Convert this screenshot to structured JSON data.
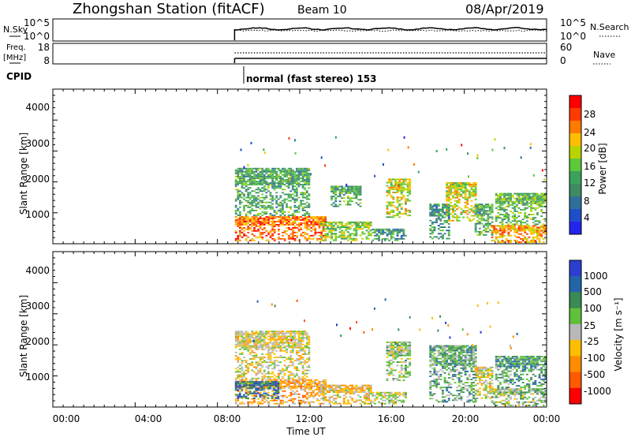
{
  "header": {
    "station": "Zhongshan Station (fitACF)",
    "beam": "Beam 10",
    "date": "08/Apr/2019"
  },
  "strips": {
    "nsky_label": "N.Sky",
    "nsky_ticks": [
      "10^5",
      "10^0"
    ],
    "nsearch_label": "N.Search",
    "nsearch_ticks": [
      "10^5",
      "10^0"
    ],
    "freq_label_1": "Freq.",
    "freq_label_2": "[MHz]",
    "freq_ticks": [
      "18",
      "8"
    ],
    "nave_label": "Nave",
    "nave_ticks": [
      "60",
      "0"
    ],
    "cpid_label": "CPID",
    "cpid_text": "normal (fast stereo) 153"
  },
  "axes": {
    "x_ticks": [
      "00:00",
      "04:00",
      "08:00",
      "12:00",
      "16:00",
      "20:00",
      "00:00"
    ],
    "x_label": "Time UT",
    "y_label": "Slant Range [km]",
    "y_ticks": [
      "4000",
      "3000",
      "2000",
      "1000"
    ]
  },
  "colorbars": {
    "power": {
      "label": "Power [dB]",
      "ticks": [
        "28",
        "24",
        "20",
        "16",
        "12",
        "8",
        "4"
      ],
      "colors": [
        "#ff0000",
        "#ff3a00",
        "#ff7a00",
        "#ffbf00",
        "#b8d400",
        "#5cc83a",
        "#3aa25a",
        "#3f8a62",
        "#2f6f9a",
        "#1f4fc8",
        "#2424f0"
      ]
    },
    "velocity": {
      "label": "Velocity [m s⁻¹]",
      "ticks": [
        "1000",
        "500",
        "100",
        "25",
        "-25",
        "-100",
        "-500",
        "-1000"
      ],
      "colors": [
        "#2a3fd0",
        "#2266a8",
        "#3a8a56",
        "#5fc03a",
        "#b8b8b8",
        "#ffbf00",
        "#ff8c00",
        "#ff5a00",
        "#ff0000"
      ]
    }
  },
  "chart_data": [
    {
      "type": "heatmap",
      "title": "Zhongshan Station (fitACF)  Beam 10  08/Apr/2019",
      "xlabel": "Time UT",
      "ylabel": "Slant Range [km]",
      "x_range": [
        "00:00",
        "24:00"
      ],
      "ylim": [
        180,
        4500
      ],
      "colorbar_label": "Power [dB]",
      "colorbar_range": [
        0,
        30
      ],
      "data_start": "08:50",
      "blobs": [
        {
          "t0": 8.85,
          "t1": 13.3,
          "r0": 250,
          "r1": 950,
          "value": 24
        },
        {
          "t0": 8.85,
          "t1": 12.5,
          "r0": 950,
          "r1": 2300,
          "value": 12
        },
        {
          "t0": 13.0,
          "t1": 15.5,
          "r0": 250,
          "r1": 800,
          "value": 16
        },
        {
          "t0": 13.5,
          "t1": 15.0,
          "r0": 1200,
          "r1": 1800,
          "value": 12
        },
        {
          "t0": 15.5,
          "t1": 17.2,
          "r0": 250,
          "r1": 600,
          "value": 10
        },
        {
          "t0": 16.2,
          "t1": 17.4,
          "r0": 900,
          "r1": 2000,
          "value": 18
        },
        {
          "t0": 18.3,
          "t1": 19.3,
          "r0": 300,
          "r1": 1300,
          "value": 10
        },
        {
          "t0": 19.1,
          "t1": 20.6,
          "r0": 800,
          "r1": 1900,
          "value": 18
        },
        {
          "t0": 20.5,
          "t1": 21.4,
          "r0": 400,
          "r1": 1300,
          "value": 12
        },
        {
          "t0": 21.3,
          "t1": 24.0,
          "r0": 200,
          "r1": 700,
          "value": 22
        },
        {
          "t0": 21.5,
          "t1": 24.0,
          "r0": 700,
          "r1": 1600,
          "value": 14
        }
      ]
    },
    {
      "type": "heatmap",
      "xlabel": "Time UT",
      "ylabel": "Slant Range [km]",
      "x_range": [
        "00:00",
        "24:00"
      ],
      "ylim": [
        180,
        4500
      ],
      "colorbar_label": "Velocity [m s⁻¹]",
      "colorbar_range": [
        -1000,
        1000
      ],
      "data_start": "08:50",
      "blobs": [
        {
          "t0": 8.85,
          "t1": 13.3,
          "r0": 250,
          "r1": 950,
          "value": -300
        },
        {
          "t0": 8.85,
          "t1": 11.0,
          "r0": 400,
          "r1": 900,
          "value": 600
        },
        {
          "t0": 8.85,
          "t1": 12.5,
          "r0": 950,
          "r1": 2300,
          "value": -80
        },
        {
          "t0": 13.0,
          "t1": 15.5,
          "r0": 250,
          "r1": 800,
          "value": -150
        },
        {
          "t0": 15.5,
          "t1": 17.2,
          "r0": 250,
          "r1": 600,
          "value": 60
        },
        {
          "t0": 16.2,
          "t1": 17.4,
          "r0": 900,
          "r1": 2000,
          "value": 120
        },
        {
          "t0": 18.3,
          "t1": 20.6,
          "r0": 300,
          "r1": 1900,
          "value": 300
        },
        {
          "t0": 20.5,
          "t1": 21.4,
          "r0": 400,
          "r1": 1300,
          "value": -60
        },
        {
          "t0": 21.3,
          "t1": 24.0,
          "r0": 200,
          "r1": 700,
          "value": 150
        },
        {
          "t0": 21.5,
          "t1": 24.0,
          "r0": 700,
          "r1": 1600,
          "value": 400
        }
      ]
    }
  ]
}
